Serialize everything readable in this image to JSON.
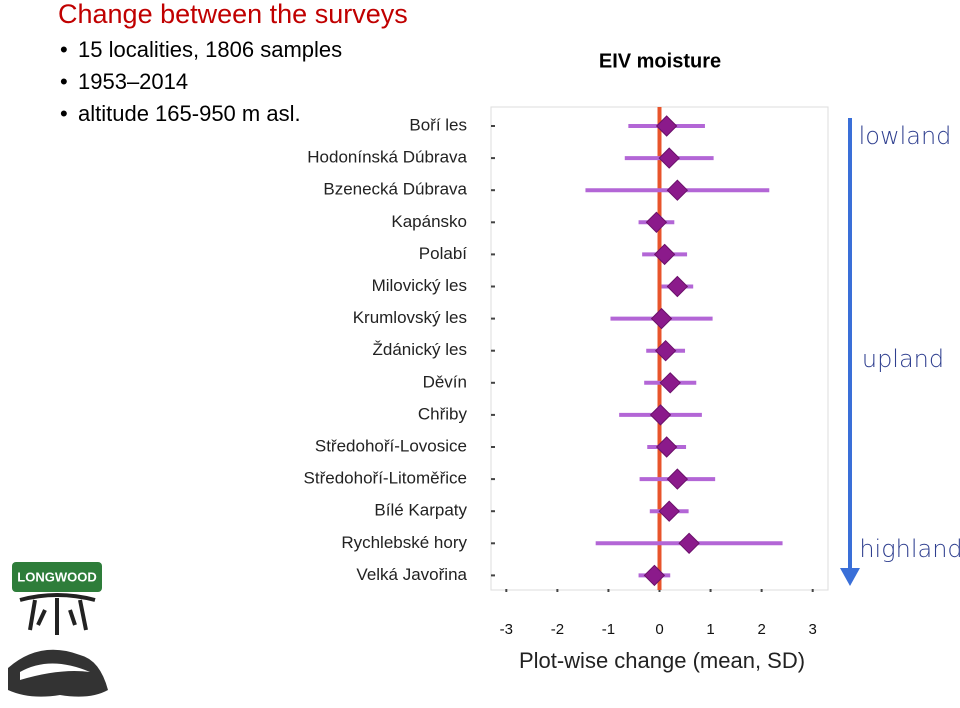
{
  "header": {
    "title": "Change between the surveys",
    "bullets": [
      "15 localities, 1806 samples",
      "1953–2014",
      "altitude 165-950 m asl."
    ]
  },
  "logo": {
    "text": "LONGWOOD"
  },
  "side_labels": [
    "lowland",
    "upland",
    "highland"
  ],
  "chart_data": {
    "type": "forest",
    "title": "EIV moisture",
    "x_label": "Plot-wise change (mean, SD)",
    "categories": [
      "Boří les",
      "Hodonínská Dúbrava",
      "Bzenecká Dúbrava",
      "Kapánsko",
      "Polabí",
      "Milovický les",
      "Krumlovský les",
      "Ždánický les",
      "Děvín",
      "Chřiby",
      "Středohoří-Lovosice",
      "Středohoří-Litoměřice",
      "Bílé Karpaty",
      "Rychlebské hory",
      "Velká Javořina"
    ],
    "values": [
      0.14,
      0.19,
      0.35,
      -0.06,
      0.1,
      0.35,
      0.04,
      0.12,
      0.21,
      0.02,
      0.14,
      0.35,
      0.19,
      0.58,
      -0.1
    ],
    "errors": [
      0.75,
      0.87,
      1.8,
      0.35,
      0.44,
      0.31,
      1.0,
      0.38,
      0.51,
      0.81,
      0.38,
      0.74,
      0.38,
      1.83,
      0.31
    ],
    "xlim": [
      -3.3,
      3.3
    ],
    "xticks": [
      -3,
      -2,
      -1,
      0,
      1,
      2,
      3
    ],
    "refline": 0,
    "color": "#8b1a8b",
    "error_color": "#b366d6",
    "refline_color": "#e8542b"
  }
}
